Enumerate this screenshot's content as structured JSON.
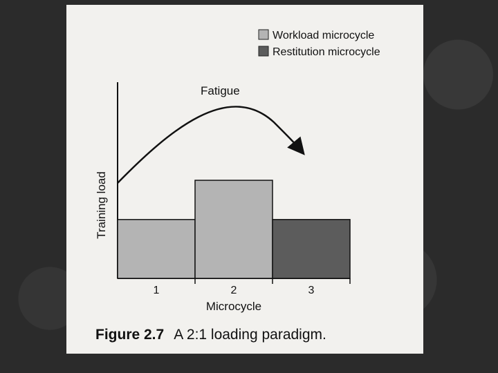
{
  "figure": {
    "label": "Figure 2.7",
    "caption": "A 2:1 loading paradigm."
  },
  "chart_data": {
    "type": "bar",
    "categories": [
      "1",
      "2",
      "3"
    ],
    "values": [
      3,
      5,
      3
    ],
    "ylim": [
      0,
      10
    ],
    "xlabel": "Microcycle",
    "ylabel": "Training load",
    "legend": [
      {
        "name": "Workload microcycle",
        "color": "#b4b4b4"
      },
      {
        "name": "Restitution microcycle",
        "color": "#5c5c5c"
      }
    ],
    "bar_types": [
      "Workload microcycle",
      "Workload microcycle",
      "Restitution microcycle"
    ],
    "annotation": "Fatigue",
    "legend_position": "top-right",
    "grid": false
  }
}
